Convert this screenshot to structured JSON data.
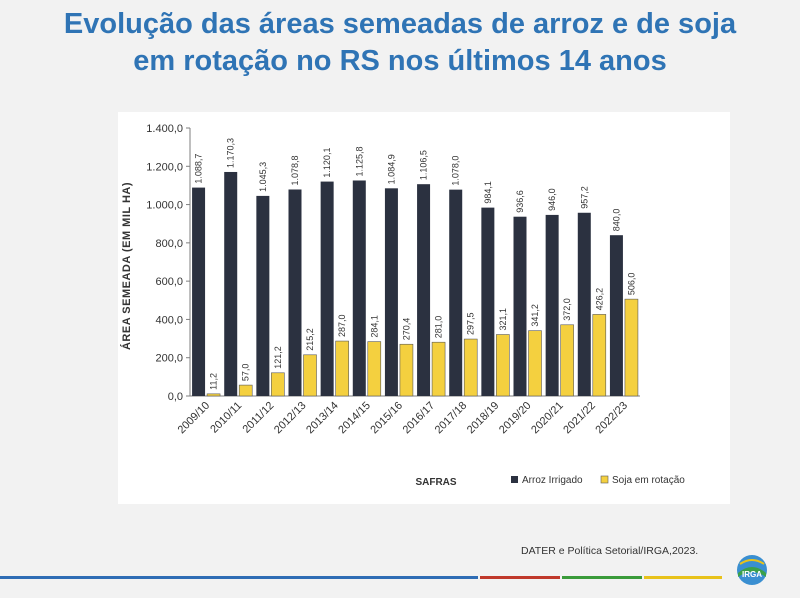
{
  "title_line1": "Evolução das áreas semeadas de arroz e de soja",
  "title_line2": "em rotação no RS nos últimos 14 anos",
  "source": "DATER e Política Setorial/IRGA,2023.",
  "logo_text": "IRGA",
  "colors": {
    "title": "#2f74b5",
    "arroz": "#2b3140",
    "soja": "#f4d03f",
    "stripe_blue": "#2f6db5",
    "stripe_red": "#c0392b",
    "stripe_green": "#3a9b3a",
    "stripe_yellow": "#e8c21b"
  },
  "chart_data": {
    "type": "bar",
    "title": "",
    "xlabel": "SAFRAS",
    "ylabel": "ÁREA SEMEADA (EM MIL HA)",
    "ylim": [
      0,
      1400
    ],
    "yticks": [
      "0,0",
      "200,0",
      "400,0",
      "600,0",
      "800,0",
      "1.000,0",
      "1.200,0",
      "1.400,0"
    ],
    "categories": [
      "2009/10",
      "2010/11",
      "2011/12",
      "2012/13",
      "2013/14",
      "2014/15",
      "2015/16",
      "2016/17",
      "2017/18",
      "2018/19",
      "2019/20",
      "2020/21",
      "2021/22",
      "2022/23"
    ],
    "legend_position": "bottom-right",
    "series": [
      {
        "name": "Arroz Irrigado",
        "color": "#2b3140",
        "values": [
          1088.7,
          1170.3,
          1045.3,
          1078.8,
          1120.1,
          1125.8,
          1084.9,
          1106.5,
          1078.0,
          984.1,
          936.6,
          946.0,
          957.2,
          840.0
        ],
        "labels": [
          "1.088,7",
          "1.170,3",
          "1.045,3",
          "1.078,8",
          "1.120,1",
          "1.125,8",
          "1.084,9",
          "1.106,5",
          "1.078,0",
          "984,1",
          "936,6",
          "946,0",
          "957,2",
          "840,0"
        ]
      },
      {
        "name": "Soja em rotação",
        "color": "#f4d03f",
        "values": [
          11.2,
          57.0,
          121.2,
          215.2,
          287.0,
          284.1,
          270.4,
          281.0,
          297.5,
          321.1,
          341.2,
          372.0,
          426.2,
          506.0
        ],
        "labels": [
          "11,2",
          "57,0",
          "121,2",
          "215,2",
          "287,0",
          "284,1",
          "270,4",
          "281,0",
          "297,5",
          "321,1",
          "341,2",
          "372,0",
          "426,2",
          "506,0"
        ]
      }
    ]
  }
}
